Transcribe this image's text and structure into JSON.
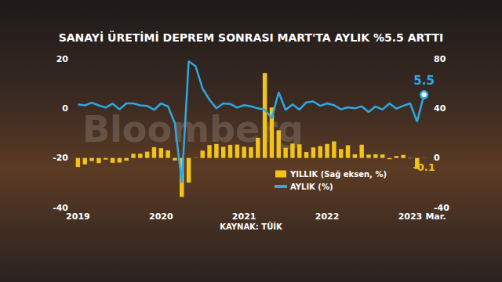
{
  "chart_data": {
    "type": "bar",
    "title": "SANAYİ ÜRETİMİ DEPREM SONRASI MART'TA AYLIK %5.5 ARTTI",
    "source": "KAYNAK: TÜİK",
    "watermark": "Bloomberg",
    "categories": [
      "2019",
      null,
      null,
      null,
      null,
      null,
      null,
      null,
      null,
      null,
      null,
      null,
      "2020",
      null,
      null,
      null,
      null,
      null,
      null,
      null,
      null,
      null,
      null,
      null,
      "2021",
      null,
      null,
      null,
      null,
      null,
      null,
      null,
      null,
      null,
      null,
      null,
      "2022",
      null,
      null,
      null,
      null,
      null,
      null,
      null,
      null,
      null,
      null,
      null,
      "2023",
      null,
      "Mar."
    ],
    "ylim": [
      -40,
      20
    ],
    "yticks": [
      -40,
      -20,
      0,
      20
    ],
    "y2lim": [
      -40,
      80
    ],
    "y2ticks": [
      -40,
      0,
      40,
      80
    ],
    "grid": false,
    "legend": "bottom",
    "series": [
      {
        "name": "YILLIK (Sağ eksen, %)",
        "type": "bar",
        "axis": "y2",
        "color": "#f2c318",
        "values": [
          -7.3,
          -5.2,
          -2.5,
          -4.2,
          -1.3,
          -3.9,
          -3.7,
          -2.2,
          3.4,
          3.5,
          5.1,
          8.7,
          7.9,
          6.2,
          -2.0,
          -31.4,
          -19.9,
          0.2,
          6.0,
          10.4,
          11.3,
          9.0,
          10.6,
          10.8,
          9.1,
          8.7,
          16.3,
          68.5,
          40.7,
          22.3,
          8.2,
          11.6,
          11.0,
          4.8,
          8.5,
          9.6,
          11.3,
          13.4,
          7.2,
          10.3,
          3.0,
          10.7,
          2.7,
          3.0,
          2.8,
          -1.0,
          1.6,
          2.4,
          -0.3,
          -8.9,
          -0.1
        ],
        "value_labels": [
          null,
          null,
          null,
          null,
          null,
          null,
          null,
          null,
          null,
          null,
          null,
          null,
          null,
          null,
          null,
          null,
          null,
          null,
          null,
          null,
          null,
          null,
          null,
          null,
          null,
          null,
          null,
          null,
          null,
          null,
          null,
          null,
          null,
          null,
          null,
          null,
          null,
          null,
          null,
          null,
          null,
          null,
          null,
          null,
          null,
          null,
          null,
          null,
          null,
          null,
          "-0.1"
        ]
      },
      {
        "name": "AYLIK (%)",
        "type": "line",
        "color": "#2ea8e0",
        "marker": "circle",
        "values": [
          1.6,
          1.2,
          2.3,
          1.2,
          0.3,
          1.9,
          -0.4,
          2.0,
          2.0,
          1.2,
          1.0,
          -0.6,
          2.0,
          0.8,
          -6.0,
          -30.0,
          19.0,
          17.0,
          8.0,
          3.5,
          0.0,
          2.0,
          1.8,
          0.3,
          1.3,
          0.8,
          0.0,
          -0.5,
          -4.0,
          6.5,
          -0.6,
          1.6,
          -0.5,
          2.4,
          2.8,
          1.0,
          2.0,
          1.3,
          -0.4,
          0.4,
          0.0,
          0.8,
          -1.5,
          0.8,
          -0.5,
          2.0,
          -0.1,
          1.0,
          2.0,
          -5.4,
          5.5
        ],
        "value_labels": [
          null,
          null,
          null,
          null,
          null,
          null,
          null,
          null,
          null,
          null,
          null,
          null,
          null,
          null,
          null,
          null,
          null,
          null,
          null,
          null,
          null,
          null,
          null,
          null,
          null,
          null,
          null,
          null,
          null,
          null,
          null,
          null,
          null,
          null,
          null,
          null,
          null,
          null,
          null,
          null,
          null,
          null,
          null,
          null,
          null,
          null,
          null,
          null,
          null,
          null,
          "5.5"
        ]
      }
    ]
  }
}
